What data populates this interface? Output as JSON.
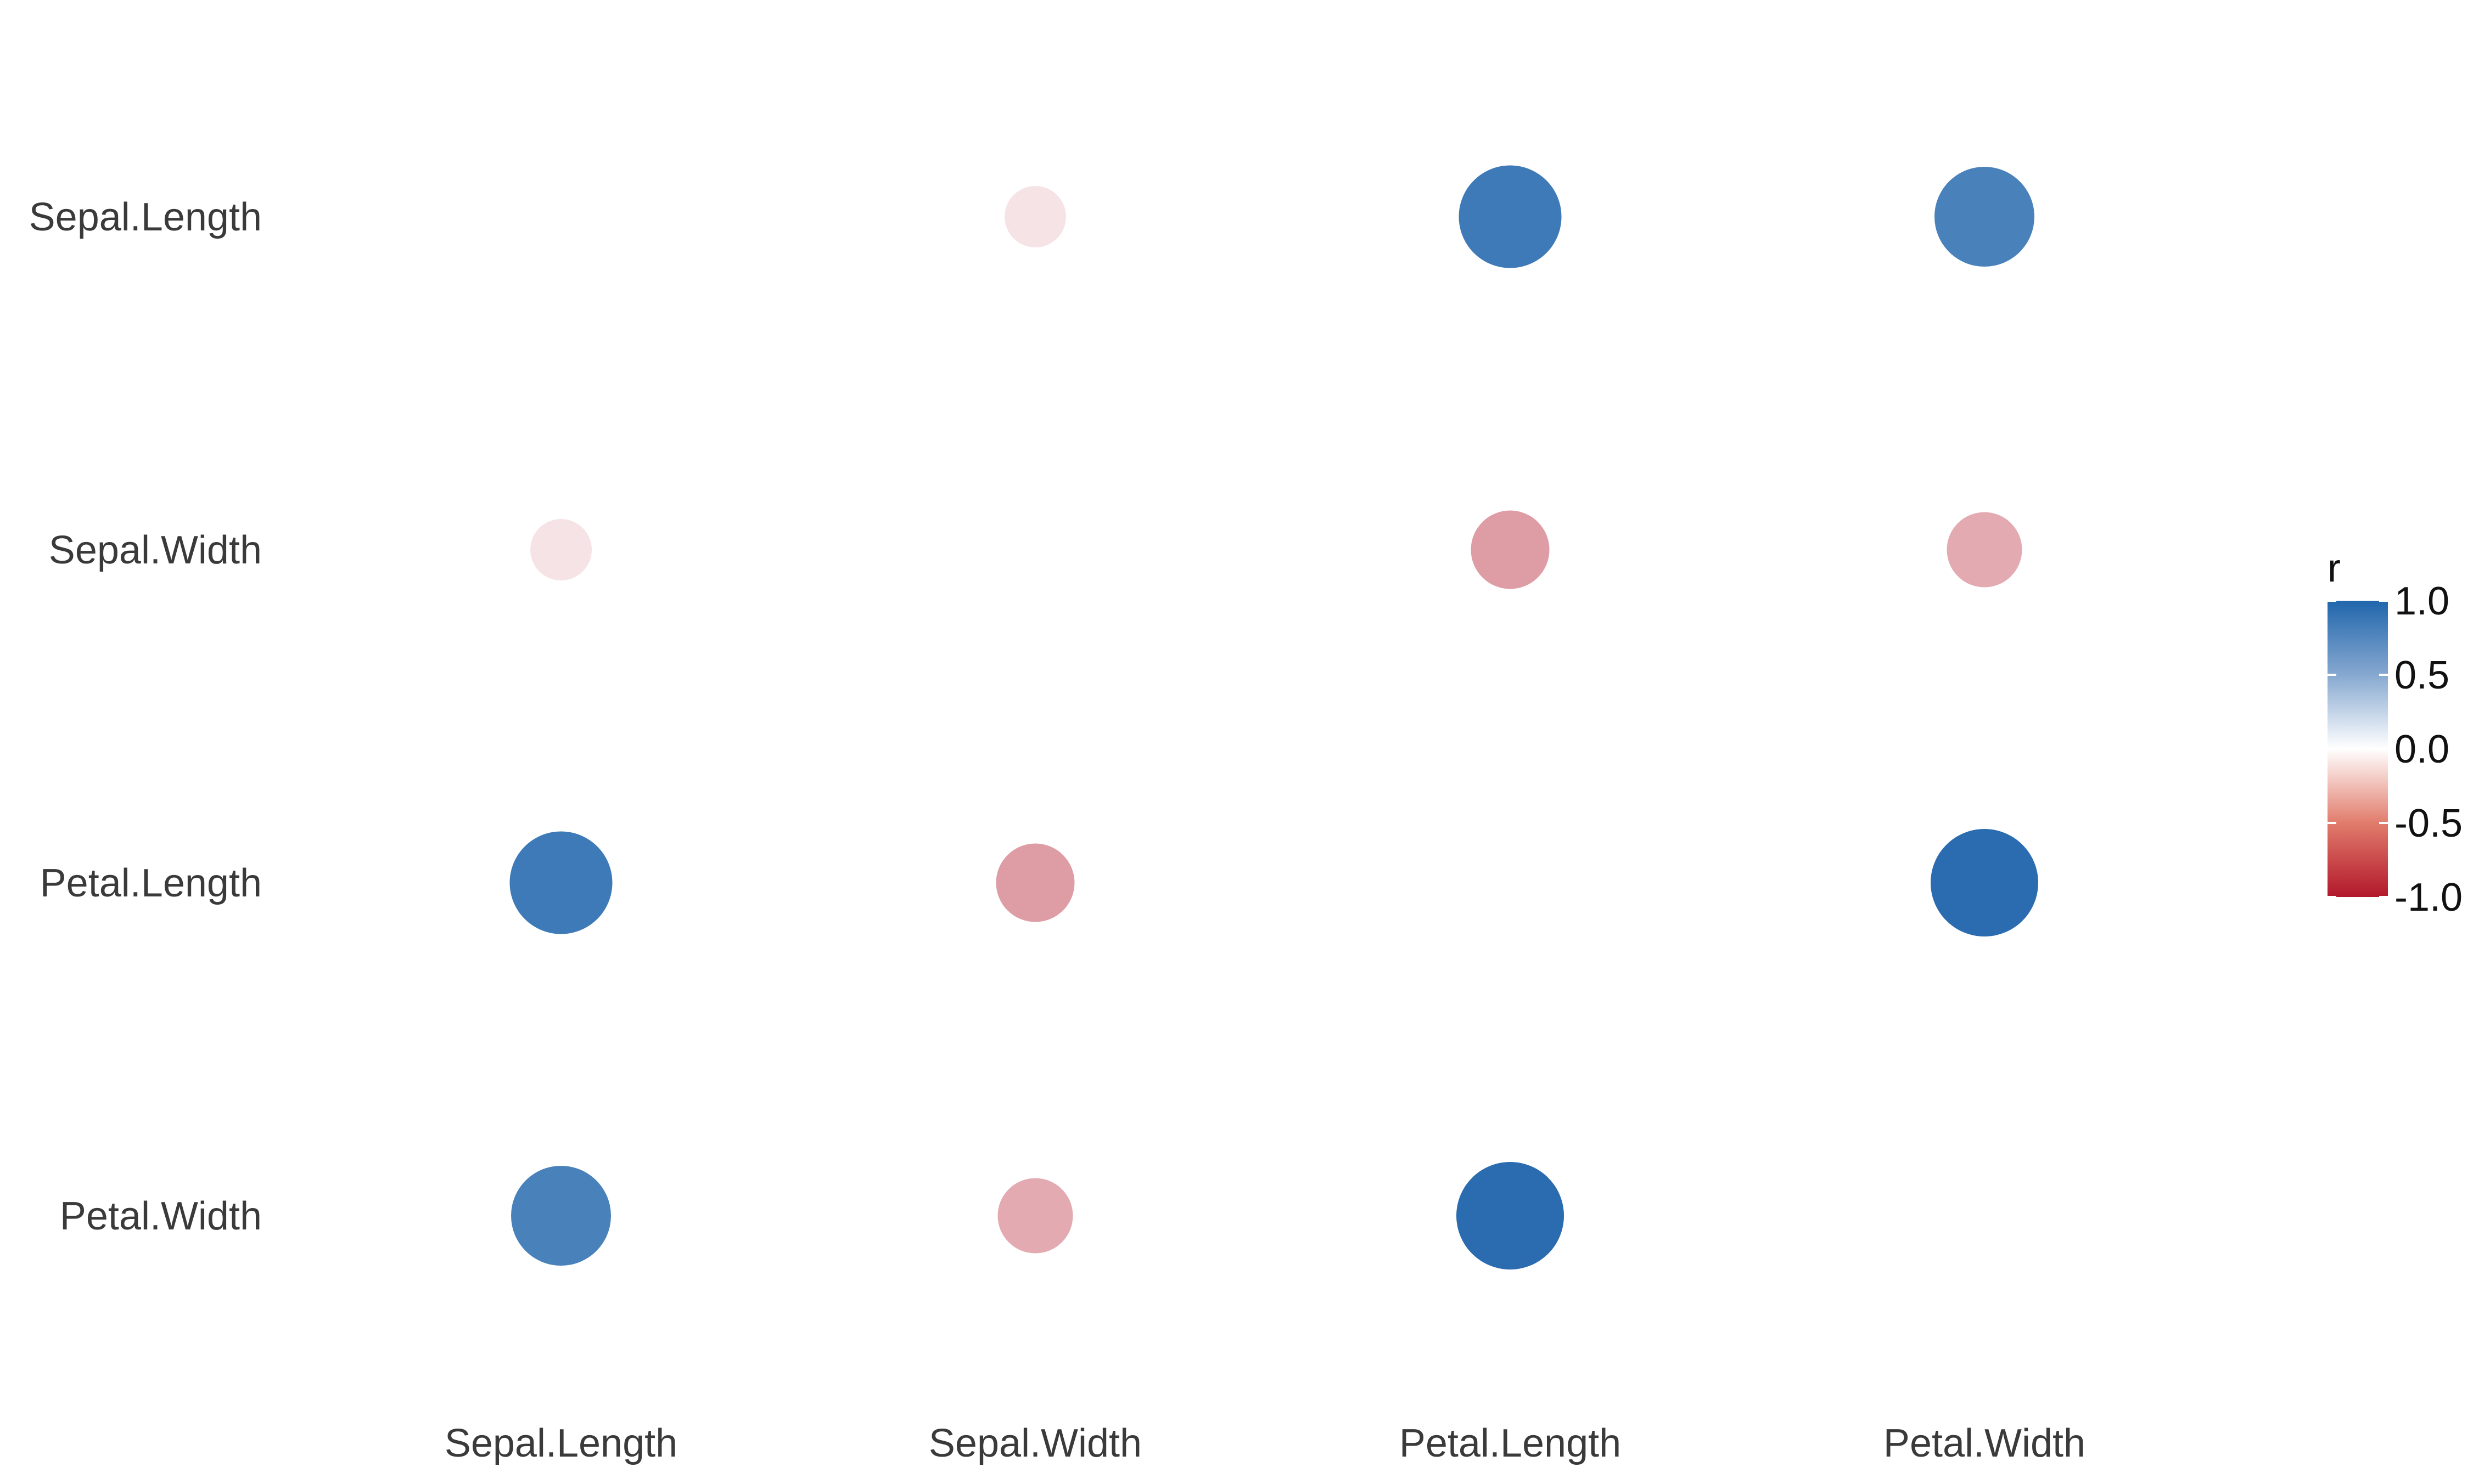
{
  "chart_data": {
    "type": "scatter",
    "subtype": "correlation-matrix",
    "title": "",
    "xlabel": "",
    "ylabel": "",
    "variables": [
      "Sepal.Length",
      "Sepal.Width",
      "Petal.Length",
      "Petal.Width"
    ],
    "x_tick_labels": [
      "Sepal.Length",
      "Sepal.Width",
      "Petal.Length",
      "Petal.Width"
    ],
    "y_tick_labels": [
      "Sepal.Length",
      "Sepal.Width",
      "Petal.Length",
      "Petal.Width"
    ],
    "matrix": [
      [
        null,
        -0.12,
        0.87,
        0.82
      ],
      [
        -0.12,
        null,
        -0.43,
        -0.37
      ],
      [
        0.87,
        -0.43,
        null,
        0.96
      ],
      [
        0.82,
        -0.37,
        0.96,
        null
      ]
    ],
    "color_scale": {
      "title": "r",
      "min": -1.0,
      "max": 1.0,
      "ticks": [
        "1.0",
        "0.5",
        "0.0",
        "-0.5",
        "-1.0"
      ],
      "tick_values": [
        1.0,
        0.5,
        0.0,
        -0.5,
        -1.0
      ],
      "low_color": "#b2182b",
      "mid_color": "#ffffff",
      "high_color": "#2166ac"
    },
    "legend_position": "right",
    "grid": false
  }
}
